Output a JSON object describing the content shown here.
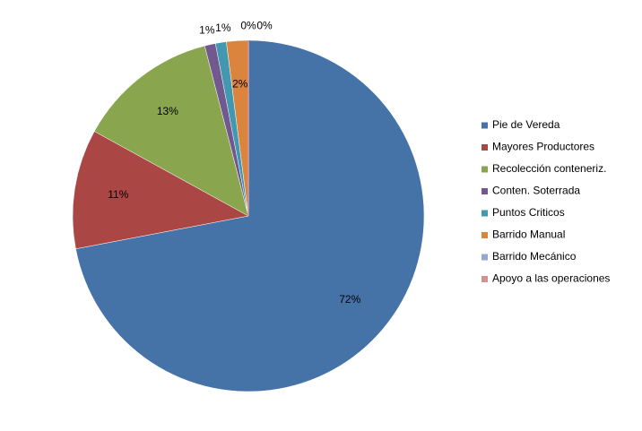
{
  "chart_data": {
    "type": "pie",
    "categories": [
      "Pie de Vereda",
      "Mayores Productores",
      "Recolección conteneriz.",
      "Conten. Soterrada",
      "Puntos Criticos",
      "Barrido Manual",
      "Barrido Mecánico",
      "Apoyo a las operaciones"
    ],
    "values": [
      72,
      11,
      13,
      1,
      1,
      2,
      0,
      0
    ],
    "value_labels": [
      "72%",
      "11%",
      "13%",
      "1%",
      "1%",
      "2%",
      "0%",
      "0%"
    ],
    "colors": [
      "#4572a7",
      "#aa4643",
      "#89a54e",
      "#71588f",
      "#4198af",
      "#db843d",
      "#93a9cf",
      "#d19392"
    ],
    "legend": "right"
  }
}
